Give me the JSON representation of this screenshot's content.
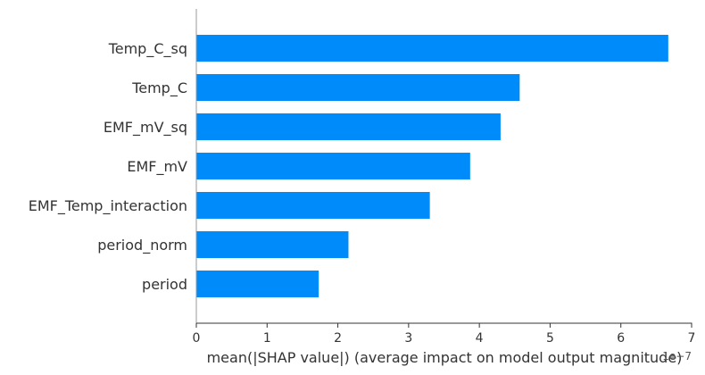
{
  "chart_data": {
    "type": "bar",
    "orientation": "horizontal",
    "categories": [
      "Temp_C_sq",
      "Temp_C",
      "EMF_mV_sq",
      "EMF_mV",
      "EMF_Temp_interaction",
      "period_norm",
      "period"
    ],
    "values": [
      6.67,
      4.57,
      4.3,
      3.87,
      3.3,
      2.15,
      1.73
    ],
    "xlabel": "mean(|SHAP value|) (average impact on model output magnitude)",
    "ylabel": "",
    "title": "",
    "xlim": [
      0,
      7
    ],
    "xticks": [
      "0",
      "1",
      "2",
      "3",
      "4",
      "5",
      "6",
      "7"
    ],
    "scale_offset_text": "1e−7",
    "bar_color": "#008bfb",
    "grid": false,
    "legend": false
  }
}
